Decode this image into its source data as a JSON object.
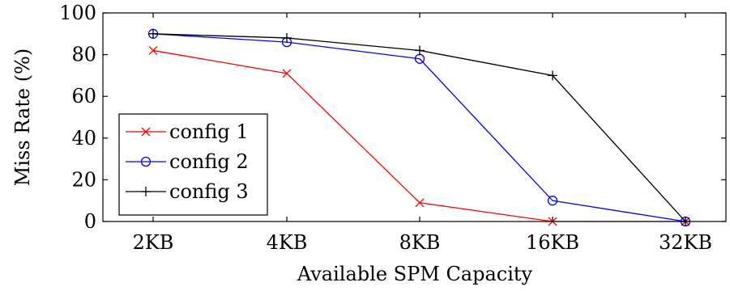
{
  "chart_data": {
    "type": "line",
    "title": "",
    "xlabel": "Available SPM Capacity",
    "ylabel": "Miss Rate (%)",
    "categories": [
      "2KB",
      "4KB",
      "8KB",
      "16KB",
      "32KB"
    ],
    "ylim": [
      0,
      100
    ],
    "yticks": [
      "0",
      "20",
      "40",
      "60",
      "80",
      "100"
    ],
    "grid": false,
    "legend_position": "bottom-left",
    "series": [
      {
        "name": "config 1",
        "color": "#ff0000",
        "marker": "x",
        "values": [
          82,
          71,
          9,
          0,
          0
        ]
      },
      {
        "name": "config 2",
        "color": "#0000ff",
        "marker": "circle",
        "values": [
          90,
          86,
          78,
          10,
          0
        ]
      },
      {
        "name": "config 3",
        "color": "#000000",
        "marker": "plus",
        "values": [
          90,
          88,
          82,
          70,
          0
        ]
      }
    ]
  }
}
